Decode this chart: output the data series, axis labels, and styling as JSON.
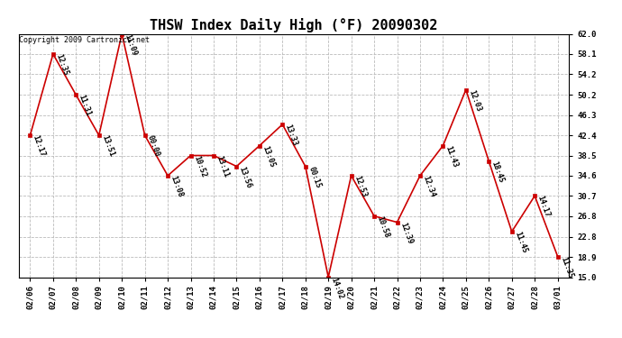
{
  "title": "THSW Index Daily High (°F) 20090302",
  "copyright": "Copyright 2009 Cartronics.net",
  "dates": [
    "02/06",
    "02/07",
    "02/08",
    "02/09",
    "02/10",
    "02/11",
    "02/12",
    "02/13",
    "02/14",
    "02/15",
    "02/16",
    "02/17",
    "02/18",
    "02/19",
    "02/20",
    "02/21",
    "02/22",
    "02/23",
    "02/24",
    "02/25",
    "02/26",
    "02/27",
    "02/28",
    "03/01"
  ],
  "values": [
    42.4,
    58.1,
    50.2,
    42.4,
    62.0,
    42.4,
    34.6,
    38.5,
    38.5,
    36.4,
    40.4,
    44.5,
    36.4,
    15.0,
    34.6,
    26.8,
    25.6,
    34.6,
    40.4,
    51.2,
    37.4,
    23.8,
    30.7,
    19.0
  ],
  "annotations": [
    "12:17",
    "12:35",
    "11:31",
    "13:51",
    "11:09",
    "00:00",
    "13:08",
    "10:52",
    "13:11",
    "13:56",
    "13:05",
    "13:33",
    "00:15",
    "14:02",
    "12:53",
    "10:58",
    "12:39",
    "12:34",
    "11:43",
    "12:03",
    "18:45",
    "11:45",
    "14:17",
    "11:35"
  ],
  "line_color": "#cc0000",
  "marker_color": "#cc0000",
  "bg_color": "#ffffff",
  "grid_color": "#bbbbbb",
  "ylim": [
    15.0,
    62.0
  ],
  "yticks": [
    15.0,
    18.9,
    22.8,
    26.8,
    30.7,
    34.6,
    38.5,
    42.4,
    46.3,
    50.2,
    54.2,
    58.1,
    62.0
  ],
  "title_fontsize": 11,
  "annotation_fontsize": 6,
  "copyright_fontsize": 6,
  "tick_fontsize": 6.5
}
